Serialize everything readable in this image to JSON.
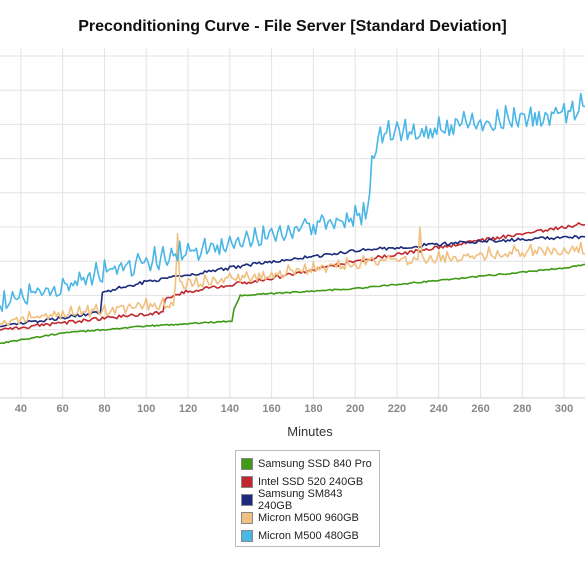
{
  "chart_data": {
    "type": "line",
    "title": "Preconditioning Curve - File Server [Standard Deviation]",
    "xlabel": "Minutes",
    "ylabel": "",
    "xlim": [
      30,
      310
    ],
    "ylim": [
      0,
      10
    ],
    "x_ticks": [
      40,
      60,
      80,
      100,
      120,
      140,
      160,
      180,
      200,
      220,
      240,
      260,
      280,
      300
    ],
    "grid": true,
    "legend_position": "bottom-center",
    "series": [
      {
        "name": "Samsung SSD 840 Pro",
        "color": "#3f9a16",
        "points": [
          [
            30,
            1.6
          ],
          [
            60,
            1.9
          ],
          [
            100,
            2.1
          ],
          [
            141,
            2.25
          ],
          [
            142,
            2.6
          ],
          [
            145,
            3.0
          ],
          [
            200,
            3.2
          ],
          [
            250,
            3.5
          ],
          [
            300,
            3.8
          ],
          [
            310,
            3.9
          ]
        ],
        "noise": 0.02,
        "spikes": []
      },
      {
        "name": "Intel SSD 520 240GB",
        "color": "#c0282d",
        "points": [
          [
            30,
            2.0
          ],
          [
            75,
            2.3
          ],
          [
            108,
            2.5
          ],
          [
            109,
            2.9
          ],
          [
            118,
            3.1
          ],
          [
            160,
            3.5
          ],
          [
            200,
            4.0
          ],
          [
            250,
            4.5
          ],
          [
            300,
            5.0
          ],
          [
            310,
            5.1
          ]
        ],
        "noise": 0.05,
        "spikes": []
      },
      {
        "name": "Samsung SM843 240GB",
        "color": "#1b2a7a",
        "points": [
          [
            30,
            2.1
          ],
          [
            78,
            2.5
          ],
          [
            79,
            3.1
          ],
          [
            100,
            3.4
          ],
          [
            150,
            3.9
          ],
          [
            200,
            4.3
          ],
          [
            250,
            4.55
          ],
          [
            300,
            4.7
          ],
          [
            310,
            4.7
          ]
        ],
        "noise": 0.05,
        "spikes": []
      },
      {
        "name": "Micron M500 960GB",
        "color": "#f0c080",
        "points": [
          [
            30,
            2.2
          ],
          [
            60,
            2.4
          ],
          [
            100,
            2.65
          ],
          [
            113,
            2.75
          ],
          [
            114,
            3.3
          ],
          [
            150,
            3.5
          ],
          [
            200,
            3.9
          ],
          [
            250,
            4.1
          ],
          [
            300,
            4.3
          ],
          [
            310,
            4.3
          ]
        ],
        "noise": 0.12,
        "spikes": [
          [
            115,
            4.8
          ],
          [
            231,
            5.0
          ]
        ]
      },
      {
        "name": "Micron M500 480GB",
        "color": "#4ab6e6",
        "points": [
          [
            30,
            2.7
          ],
          [
            80,
            3.6
          ],
          [
            150,
            4.6
          ],
          [
            205,
            5.3
          ],
          [
            207,
            6.1
          ],
          [
            209,
            7.1
          ],
          [
            212,
            7.6
          ],
          [
            220,
            7.7
          ],
          [
            260,
            8.0
          ],
          [
            300,
            8.2
          ],
          [
            310,
            8.5
          ]
        ],
        "noise": 0.22,
        "spikes": [
          [
            308,
            8.9
          ]
        ]
      }
    ]
  }
}
